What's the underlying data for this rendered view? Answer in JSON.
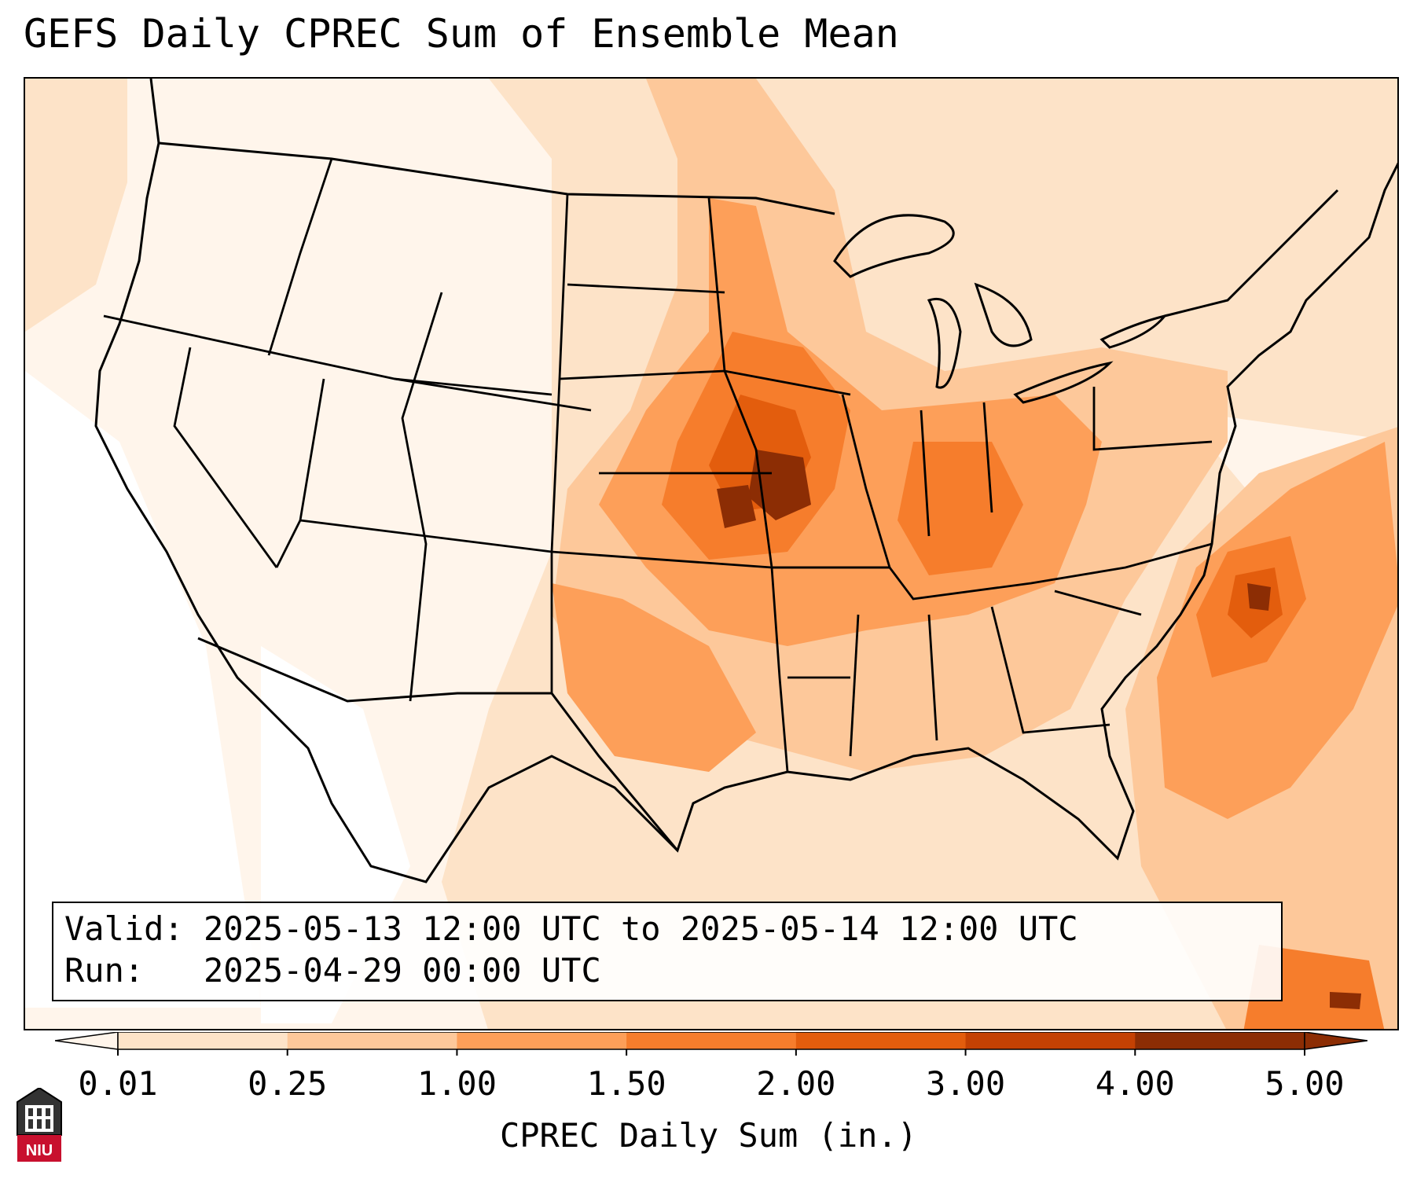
{
  "map": {
    "title": "GEFS Daily CPREC Sum of Ensemble Mean",
    "valid_label": "Valid:",
    "valid_text": "2025-05-13 12:00 UTC to 2025-05-14 12:00 UTC",
    "run_label": "Run:",
    "run_text": "2025-04-29 00:00 UTC",
    "region": "Contiguous United States",
    "colorbar": {
      "label": "CPREC Daily Sum (in.)",
      "ticks": [
        "0.01",
        "0.25",
        "1.00",
        "1.50",
        "2.00",
        "3.00",
        "4.00",
        "5.00"
      ],
      "colors": [
        "#fff5eb",
        "#fde3c8",
        "#fdc89a",
        "#fd9f59",
        "#f67d2c",
        "#e35d0d",
        "#c44103",
        "#8c2d04"
      ],
      "extend": "both"
    },
    "precip_colors": {
      "white": "#ffffff",
      "c1": "#fff5eb",
      "c2": "#fde3c8",
      "c3": "#fdc89a",
      "c4": "#fd9f59",
      "c5": "#f67d2c",
      "c6": "#e35d0d",
      "c7": "#8c2d04"
    },
    "logo": {
      "text": "NIU",
      "icon": "university-tower-icon",
      "color": "#c8102e"
    }
  }
}
